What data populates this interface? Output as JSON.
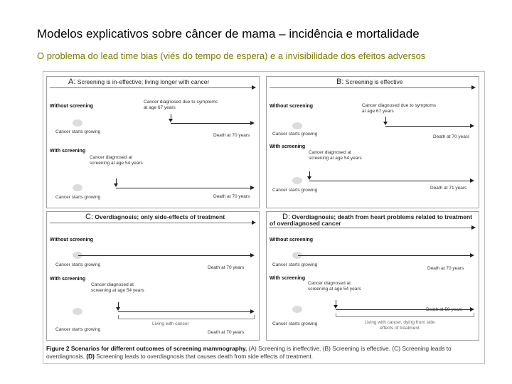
{
  "slide": {
    "title": "Modelos explicativos sobre câncer de mama – incidência e mortalidade",
    "subtitle": "O problema do lead time bias (viés do tempo de espera) e a invisibilidade dos efeitos adversos"
  },
  "figure": {
    "panels": [
      {
        "letter": "A:",
        "title": "Screening is in-effective; living longer with cancer",
        "without_label": "Without screening",
        "with_label": "With screening",
        "diag_without": "Cancer diagnosed due to symptoms at age 67 years",
        "diag_with": "Cancer diagnosed at screening at age 54 years",
        "start1": "Cancer starts growing",
        "start2": "Cancer starts growing",
        "death_without": "Death at 70 years",
        "death_with": "Death at 70 years",
        "bracket_label": ""
      },
      {
        "letter": "B:",
        "title": "Screening is effective",
        "without_label": "Without screening",
        "with_label": "With screening",
        "diag_without": "Cancer diagnosed due to symptoms at age 67 years",
        "diag_with": "Cancer diagnosed at screening at age 54 years",
        "start1": "Cancer starts growing",
        "start2": "Cancer starts growing",
        "death_without": "Death at 70 years",
        "death_with": "Death at 71 years",
        "bracket_label": ""
      },
      {
        "letter": "C:",
        "title": "Overdiagnosis; only side-effects of treatment",
        "without_label": "Without screening",
        "with_label": "With screening",
        "diag_without": "",
        "diag_with": "Cancer diagnosed at screening at age 54 years",
        "start1": "Cancer starts growing",
        "start2": "Cancer starts growing",
        "death_without": "Death at 70 years",
        "death_with": "Death at 70 years",
        "bracket_label": "Living with cancer"
      },
      {
        "letter": "D:",
        "title": "Overdiagnosis; death from heart problems related to treatment of overdiagnosed cancer",
        "without_label": "Without screening",
        "with_label": "With screening",
        "diag_without": "",
        "diag_with": "Cancer diagnosed at screening at age 54 years",
        "start1": "Cancer starts growing",
        "start2": "Cancer starts growing",
        "death_without": "Death at 70 years",
        "death_with": "Death at 59 years",
        "bracket_label": "Living with cancer, dying from side effects of treatment"
      }
    ],
    "caption": {
      "bold1": "Figure 2 Scenarios for different outcomes of screening mammography.",
      "text1": " (A) Screening is ineffective. (B) Screening is effective. (C) Screening leads to overdiagnosis. ",
      "bold2": "(D)",
      "text2": " Screening leads to overdiagnosis that causes death from side effects of treatment."
    }
  }
}
